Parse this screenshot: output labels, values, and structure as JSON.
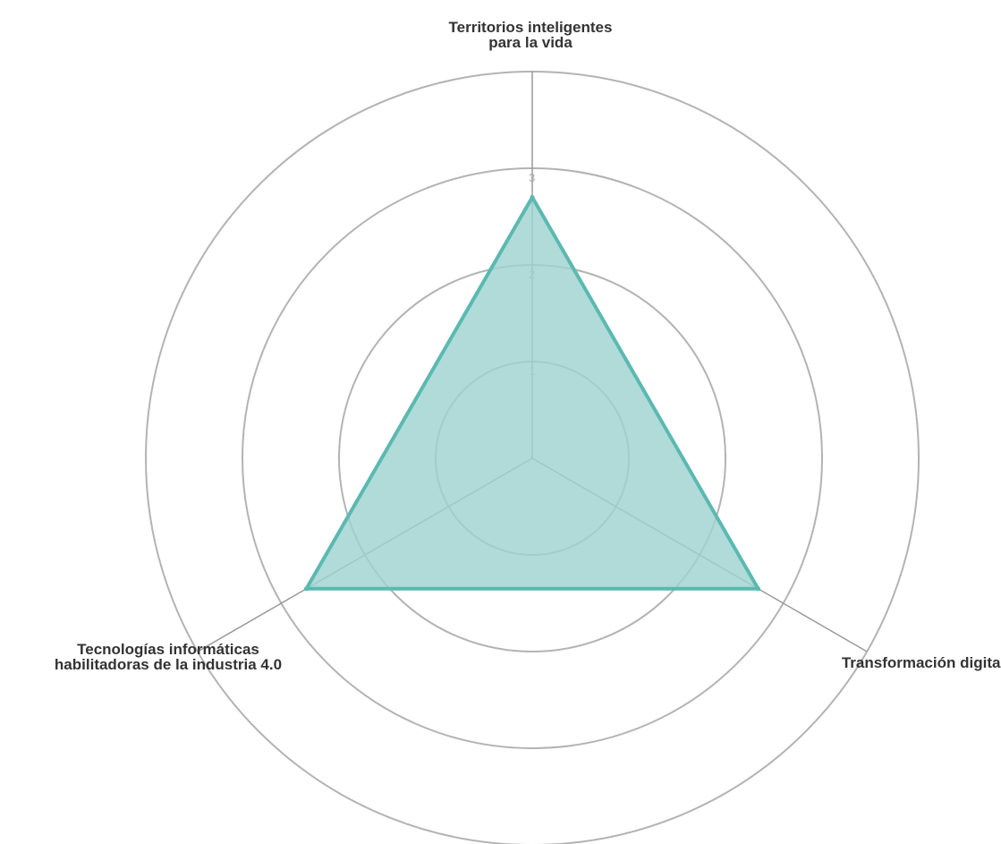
{
  "chart_data": {
    "type": "radar",
    "axes": [
      {
        "label_lines": [
          "Territorios inteligentes",
          "para la vida"
        ],
        "value": 2.7
      },
      {
        "label_lines": [
          "Transformación digital"
        ],
        "value": 2.7
      },
      {
        "label_lines": [
          "Tecnologías informáticas",
          "habilitadoras de la industria 4.0"
        ],
        "value": 2.7
      }
    ],
    "ticks": [
      "1",
      "2",
      "3"
    ],
    "rings": [
      1,
      2,
      3,
      4
    ],
    "r_max": 4,
    "colors": {
      "fill": "#9fd3cf",
      "stroke": "#5ab9b1",
      "ring": "#b3b3b3",
      "spoke": "#9a9a9a"
    }
  }
}
